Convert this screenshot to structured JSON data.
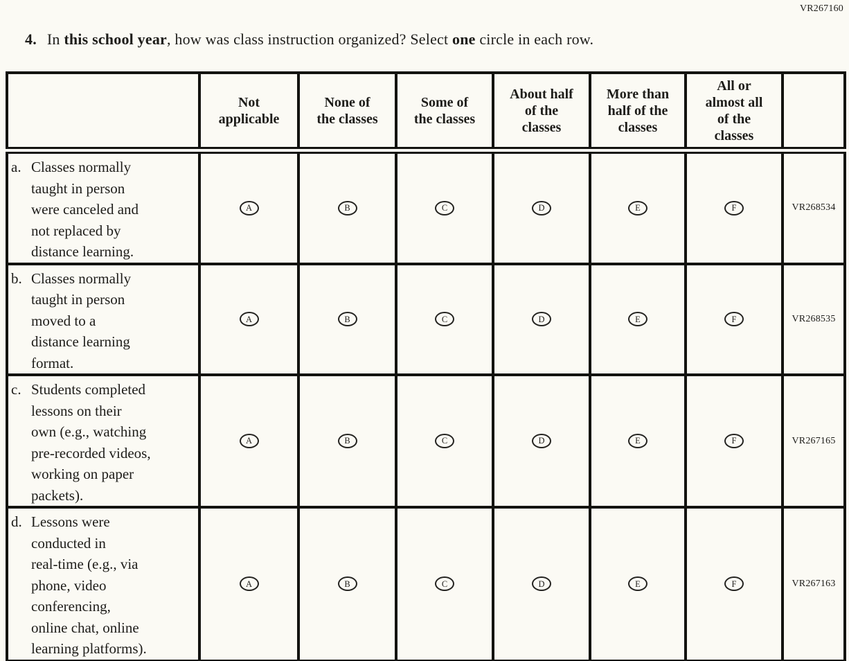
{
  "page": {
    "top_right_code": "VR267160",
    "paper_color": "#fbfaf4",
    "ink_color": "#1e1d1a",
    "border_color": "#131310"
  },
  "question": {
    "number": "4.",
    "segments": [
      {
        "text": "In ",
        "bold": false
      },
      {
        "text": "this school year",
        "bold": true
      },
      {
        "text": ", how was class instruction organized? Select ",
        "bold": false
      },
      {
        "text": "one",
        "bold": true
      },
      {
        "text": " circle in each row.",
        "bold": false
      }
    ]
  },
  "table": {
    "column_headers": [
      "",
      "Not\napplicable",
      "None of\nthe classes",
      "Some of\nthe classes",
      "About half\nof the\nclasses",
      "More than\nhalf of the\nclasses",
      "All or\nalmost all\nof the\nclasses",
      ""
    ],
    "option_letters": [
      "A",
      "B",
      "C",
      "D",
      "E",
      "F"
    ],
    "rows": [
      {
        "letter": "a.",
        "text": "Classes normally\ntaught in person\nwere canceled and\nnot replaced by\ndistance learning.",
        "code": "VR268534"
      },
      {
        "letter": "b.",
        "text": "Classes normally\ntaught in person\nmoved to a\ndistance learning\nformat.",
        "code": "VR268535"
      },
      {
        "letter": "c.",
        "text": "Students completed\nlessons on their\nown (e.g., watching\npre-recorded videos,\nworking on paper\npackets).",
        "code": "VR267165"
      },
      {
        "letter": "d.",
        "text": "Lessons were\nconducted in\nreal-time (e.g., via\nphone, video\nconferencing,\nonline chat, online\nlearning platforms).",
        "code": "VR267163"
      }
    ]
  }
}
